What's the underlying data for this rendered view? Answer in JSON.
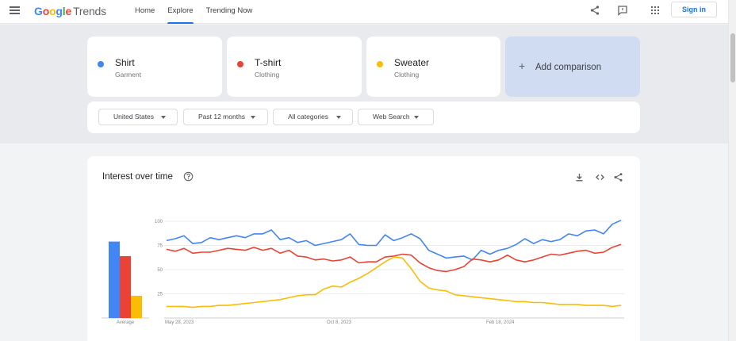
{
  "topbar": {
    "brand": "Google",
    "product": "Trends",
    "nav": [
      {
        "label": "Home",
        "active": false
      },
      {
        "label": "Explore",
        "active": true
      },
      {
        "label": "Trending Now",
        "active": false
      }
    ],
    "signin_label": "Sign in",
    "icons": [
      "menu-icon",
      "share-icon",
      "feedback-icon",
      "apps-grid-icon"
    ]
  },
  "terms": [
    {
      "name": "Shirt",
      "category": "Garment",
      "color": "#4285f4"
    },
    {
      "name": "T-shirt",
      "category": "Clothing",
      "color": "#ea4335"
    },
    {
      "name": "Sweater",
      "category": "Clothing",
      "color": "#fbbc04"
    }
  ],
  "add_comparison_label": "Add comparison",
  "filters": [
    {
      "label": "United States"
    },
    {
      "label": "Past 12 months"
    },
    {
      "label": "All categories"
    },
    {
      "label": "Web Search"
    }
  ],
  "interest_card": {
    "title": "Interest over time",
    "icons": [
      "help-icon",
      "download-icon",
      "embed-icon",
      "share-icon"
    ]
  },
  "chart_data": {
    "type": "line",
    "title": "Interest over time",
    "ylim": [
      0,
      100
    ],
    "yticks": [
      25,
      50,
      75,
      100
    ],
    "x_tick_labels": [
      "May 28, 2023",
      "Oct 8, 2023",
      "Feb 18, 2024"
    ],
    "grid": true,
    "average": {
      "label": "Average",
      "values": [
        79,
        64,
        23
      ]
    },
    "series": [
      {
        "name": "Shirt",
        "color": "#4285f4",
        "values": [
          80,
          82,
          85,
          77,
          78,
          83,
          81,
          83,
          85,
          83,
          87,
          87,
          91,
          81,
          83,
          78,
          80,
          75,
          77,
          79,
          81,
          87,
          76,
          75,
          75,
          86,
          80,
          83,
          87,
          82,
          70,
          66,
          62,
          63,
          64,
          60,
          70,
          66,
          70,
          72,
          76,
          82,
          77,
          81,
          79,
          81,
          87,
          85,
          90,
          91,
          87,
          97,
          101
        ]
      },
      {
        "name": "T-shirt",
        "color": "#ea4335",
        "values": [
          71,
          69,
          72,
          67,
          68,
          68,
          70,
          72,
          71,
          70,
          73,
          70,
          72,
          67,
          70,
          64,
          63,
          60,
          61,
          59,
          60,
          63,
          57,
          58,
          58,
          63,
          64,
          66,
          65,
          57,
          52,
          49,
          48,
          50,
          53,
          61,
          60,
          58,
          60,
          65,
          60,
          58,
          60,
          63,
          66,
          65,
          67,
          69,
          70,
          67,
          68,
          73,
          76
        ]
      },
      {
        "name": "Sweater",
        "color": "#fbbc04",
        "values": [
          12,
          12,
          12,
          11,
          12,
          12,
          13,
          13,
          14,
          15,
          16,
          17,
          18,
          19,
          21,
          23,
          24,
          24,
          30,
          33,
          32,
          37,
          41,
          46,
          52,
          58,
          63,
          62,
          51,
          38,
          31,
          29,
          28,
          24,
          23,
          22,
          21,
          20,
          19,
          18,
          17,
          17,
          16,
          16,
          15,
          14,
          14,
          14,
          13,
          13,
          13,
          12,
          13
        ]
      }
    ]
  }
}
